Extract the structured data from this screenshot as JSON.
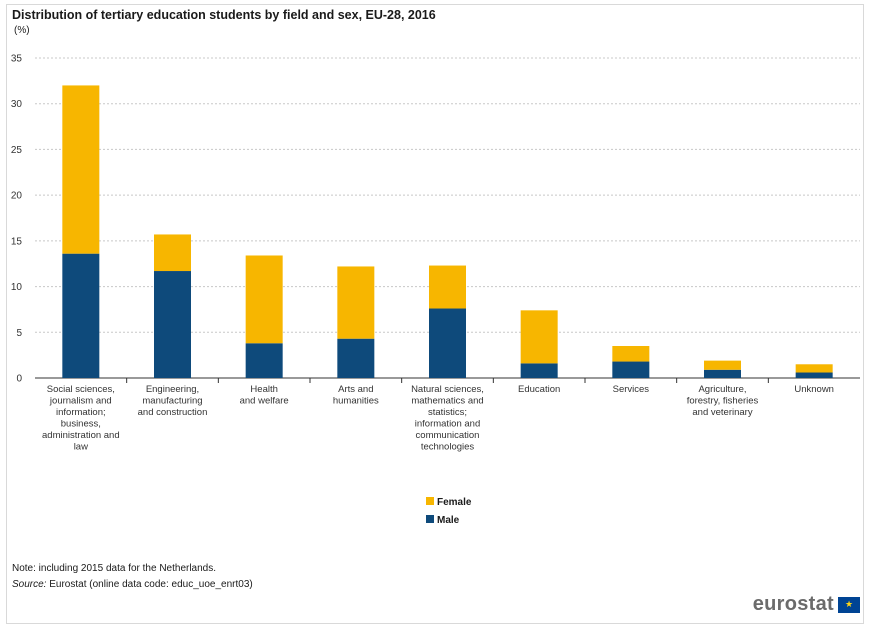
{
  "title": "Distribution of tertiary education students by field and sex, EU-28, 2016",
  "unit": "(%)",
  "note": "Note: including 2015 data for the Netherlands.",
  "source_label": "Source:",
  "source_text": "Eurostat (online data code: educ_uoe_enrt03)",
  "logo": {
    "text": "eurostat",
    "flag_icon": "eu-flag-icon"
  },
  "colors": {
    "female": "#f7b600",
    "male": "#0e4a7b",
    "grid": "#c8c8c8",
    "axis": "#333333"
  },
  "chart_data": {
    "type": "bar",
    "stacked": true,
    "ylim": [
      0,
      35
    ],
    "yticks": [
      0,
      5,
      10,
      15,
      20,
      25,
      30,
      35
    ],
    "grid": true,
    "legend_position": "bottom-center",
    "categories": [
      [
        "Social sciences,",
        "journalism and",
        "information;",
        "business,",
        "administration and",
        "law"
      ],
      [
        "Engineering,",
        "manufacturing",
        "and construction"
      ],
      [
        "Health",
        "and welfare"
      ],
      [
        "Arts and",
        "humanities"
      ],
      [
        "Natural sciences,",
        "mathematics and",
        "statistics;",
        "information and",
        "communication",
        "technologies"
      ],
      [
        "Education"
      ],
      [
        "Services"
      ],
      [
        "Agriculture,",
        "forestry, fisheries",
        "and veterinary"
      ],
      [
        "Unknown"
      ]
    ],
    "series": [
      {
        "name": "Male",
        "values": [
          13.6,
          11.7,
          3.8,
          4.3,
          7.6,
          1.6,
          1.8,
          0.9,
          0.6
        ]
      },
      {
        "name": "Female",
        "values": [
          18.4,
          4.0,
          9.6,
          7.9,
          4.7,
          5.8,
          1.7,
          1.0,
          0.9
        ]
      }
    ],
    "legend": [
      "Female",
      "Male"
    ]
  }
}
